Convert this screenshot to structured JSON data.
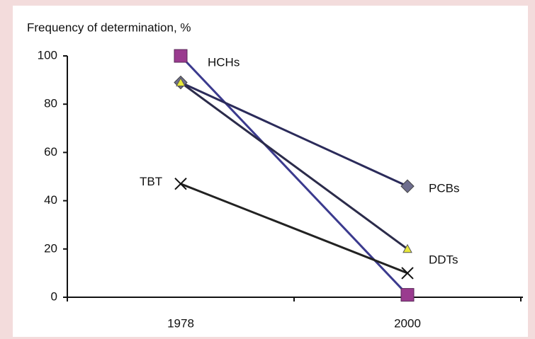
{
  "chart_data": {
    "type": "line",
    "y_label": "Frequency of determination, %",
    "categories": [
      "1978",
      "2000"
    ],
    "series": [
      {
        "name": "HCHs",
        "color": "#3b3a8e",
        "marker": "square",
        "marker_color": "#9a3b8f",
        "values": [
          100,
          1
        ]
      },
      {
        "name": "PCBs",
        "color": "#2b2b5a",
        "marker": "diamond",
        "marker_color": "#6e6e8e",
        "values": [
          89,
          46
        ]
      },
      {
        "name": "DDTs",
        "color": "#2b2b4a",
        "marker": "triangle",
        "marker_color": "#e8e83a",
        "values": [
          89,
          20
        ]
      },
      {
        "name": "TBT",
        "color": "#222222",
        "marker": "x",
        "marker_color": "#111111",
        "values": [
          47,
          10
        ]
      }
    ],
    "ylim": [
      0,
      100
    ],
    "yticks": [
      0,
      20,
      40,
      60,
      80,
      100
    ]
  }
}
